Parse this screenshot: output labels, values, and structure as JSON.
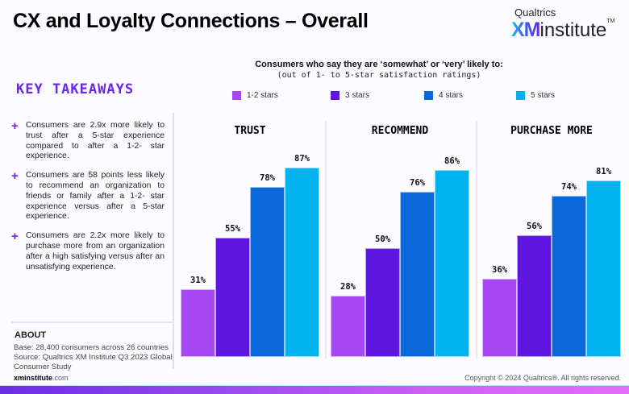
{
  "header": {
    "title": "CX and Loyalty Connections – Overall",
    "logo": {
      "small": "Qualtrics",
      "xm": "XM",
      "institute": "institute",
      "tm": "TM"
    }
  },
  "left_panel": {
    "heading": "KEY TAKEAWAYS",
    "takeaways": [
      "Consumers are 2.9x more likely to trust after a 5-star experience compared to after a 1-2- star experience.",
      "Consumers are 58 points less likely to recommend an organization to friends or family after a 1-2- star experience versus after a 5-star experience.",
      "Consumers are 2.2x more likely to purchase more from an organization after a high satisfying versus after an unsatisfying experience."
    ],
    "about_heading": "ABOUT",
    "about_text": "Base: 28,400 consumers across 26 countries Source: Qualtrics XM Institute Q3 2023 Global Consumer Study"
  },
  "footer": {
    "site_bold": "xminstitute",
    "site_rest": ".com",
    "copyright": "Copyright © 2024 Qualtrics®. All rights reserved."
  },
  "colors": {
    "accent": "#6a28e6",
    "s1": "#a547f2",
    "s2": "#5e17de",
    "s3": "#0969da",
    "s4": "#02b2ee"
  },
  "chart_data": {
    "type": "bar",
    "title": "Consumers who say they are ‘somewhat’ or ‘very’ likely to:",
    "subtitle": "(out of 1- to 5-star satisfaction ratings)",
    "categories": [
      "TRUST",
      "RECOMMEND",
      "PURCHASE MORE"
    ],
    "series": [
      {
        "name": "1-2 stars",
        "values": [
          31,
          28,
          36
        ]
      },
      {
        "name": "3 stars",
        "values": [
          55,
          50,
          56
        ]
      },
      {
        "name": "4 stars",
        "values": [
          78,
          76,
          74
        ]
      },
      {
        "name": "5 stars",
        "values": [
          87,
          86,
          81
        ]
      }
    ],
    "unit": "%",
    "ylim": [
      0,
      100
    ],
    "grid": false,
    "legend": "top"
  }
}
